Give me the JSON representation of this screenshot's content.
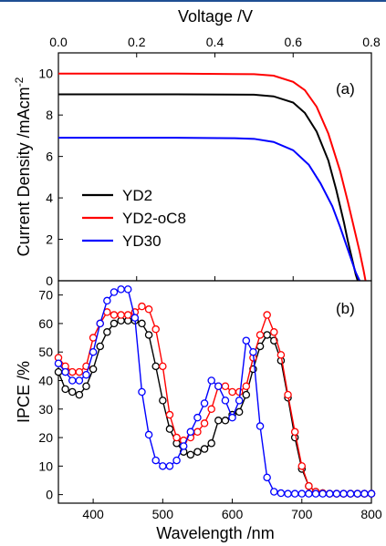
{
  "chart_data": [
    {
      "type": "line",
      "panel_label": "(a)",
      "xlabel": "Voltage /V",
      "ylabel": "Current Density /mAcm",
      "ylabel_superscript": "-2",
      "xlim": [
        0.0,
        0.8
      ],
      "ylim": [
        0,
        11
      ],
      "xticks": [
        "0.0",
        "0.2",
        "0.4",
        "0.6",
        "0.8"
      ],
      "yticks": [
        "0",
        "2",
        "4",
        "6",
        "8",
        "10"
      ],
      "legend_position": "lower-left",
      "grid": false,
      "series": [
        {
          "name": "YD2",
          "color": "#000000",
          "x": [
            0.0,
            0.3,
            0.5,
            0.55,
            0.6,
            0.63,
            0.66,
            0.69,
            0.71,
            0.73,
            0.74,
            0.75,
            0.76,
            0.765
          ],
          "y": [
            9.0,
            9.0,
            8.98,
            8.9,
            8.6,
            8.1,
            7.2,
            5.8,
            4.4,
            2.8,
            1.9,
            1.1,
            0.3,
            0.0
          ]
        },
        {
          "name": "YD2-oC8",
          "color": "#ff0000",
          "x": [
            0.0,
            0.3,
            0.5,
            0.55,
            0.6,
            0.63,
            0.66,
            0.69,
            0.72,
            0.74,
            0.75,
            0.77,
            0.78,
            0.785
          ],
          "y": [
            10.0,
            10.0,
            9.97,
            9.9,
            9.6,
            9.2,
            8.4,
            7.1,
            5.3,
            3.8,
            3.0,
            1.4,
            0.5,
            0.0
          ]
        },
        {
          "name": "YD30",
          "color": "#0000ff",
          "x": [
            0.0,
            0.3,
            0.45,
            0.5,
            0.55,
            0.6,
            0.64,
            0.67,
            0.7,
            0.72,
            0.74,
            0.76,
            0.77
          ],
          "y": [
            6.9,
            6.9,
            6.88,
            6.85,
            6.7,
            6.3,
            5.6,
            4.7,
            3.6,
            2.6,
            1.5,
            0.4,
            0.0
          ]
        }
      ]
    },
    {
      "type": "line",
      "panel_label": "(b)",
      "xlabel": "Wavelength /nm",
      "ylabel": "IPCE /%",
      "xlim": [
        350,
        800
      ],
      "ylim": [
        -3,
        75
      ],
      "xticks": [
        "400",
        "500",
        "600",
        "700",
        "800"
      ],
      "yticks": [
        "0",
        "10",
        "20",
        "30",
        "40",
        "50",
        "60",
        "70"
      ],
      "grid": false,
      "markers": "open-circle",
      "series": [
        {
          "name": "YD2",
          "color": "#000000",
          "x": [
            350,
            360,
            370,
            380,
            390,
            400,
            410,
            420,
            430,
            440,
            450,
            460,
            470,
            480,
            490,
            500,
            510,
            520,
            530,
            540,
            550,
            560,
            570,
            580,
            590,
            600,
            610,
            620,
            630,
            640,
            650,
            660,
            670,
            680,
            690,
            700,
            710,
            720,
            730,
            740,
            750,
            760,
            770,
            780,
            790,
            800
          ],
          "y": [
            43,
            37,
            36,
            35,
            38,
            44,
            52,
            57,
            60,
            61,
            61,
            61,
            60,
            56,
            45,
            33,
            23,
            18,
            15,
            14,
            15,
            16,
            18,
            26,
            26,
            28,
            29,
            35,
            44,
            52,
            56,
            54,
            47,
            34,
            20,
            9,
            3,
            1,
            0.5,
            0.3,
            0.3,
            0.3,
            0.3,
            0.3,
            0.3,
            0.3
          ]
        },
        {
          "name": "YD2-oC8",
          "color": "#ff0000",
          "x": [
            350,
            360,
            370,
            380,
            390,
            400,
            410,
            420,
            430,
            440,
            450,
            460,
            470,
            480,
            490,
            500,
            510,
            520,
            530,
            540,
            550,
            560,
            570,
            580,
            590,
            600,
            610,
            620,
            630,
            640,
            650,
            660,
            670,
            680,
            690,
            700,
            710,
            720,
            730,
            740,
            750,
            760,
            770,
            780,
            790,
            800
          ],
          "y": [
            48,
            45,
            43,
            43,
            45,
            55,
            60,
            64,
            63,
            63,
            63,
            64,
            66,
            65,
            58,
            45,
            28,
            20,
            19,
            20,
            22,
            25,
            30,
            38,
            38,
            36,
            36,
            38,
            48,
            56,
            63,
            57,
            49,
            35,
            22,
            10,
            3,
            1,
            0.5,
            0.3,
            0.3,
            0.3,
            0.3,
            0.3,
            0.3,
            0.3
          ]
        },
        {
          "name": "YD30",
          "color": "#0000ff",
          "x": [
            350,
            360,
            370,
            380,
            390,
            400,
            410,
            420,
            430,
            440,
            450,
            460,
            470,
            480,
            490,
            500,
            510,
            520,
            530,
            540,
            550,
            560,
            570,
            580,
            590,
            600,
            610,
            620,
            630,
            640,
            650,
            660,
            670,
            680,
            690,
            700,
            710,
            720,
            730,
            740,
            750,
            760,
            770,
            780,
            790,
            800
          ],
          "y": [
            46,
            43,
            40,
            40,
            42,
            50,
            60,
            68,
            71,
            72,
            72,
            62,
            36,
            21,
            12,
            10,
            10,
            12,
            17,
            22,
            27,
            32,
            40,
            38,
            33,
            27,
            33,
            54,
            50,
            24,
            6,
            1,
            0.5,
            0.3,
            0.3,
            0.3,
            0.3,
            0.3,
            0.3,
            0.3,
            0.3,
            0.3,
            0.3,
            0.3,
            0.3,
            0.3
          ]
        }
      ]
    }
  ]
}
